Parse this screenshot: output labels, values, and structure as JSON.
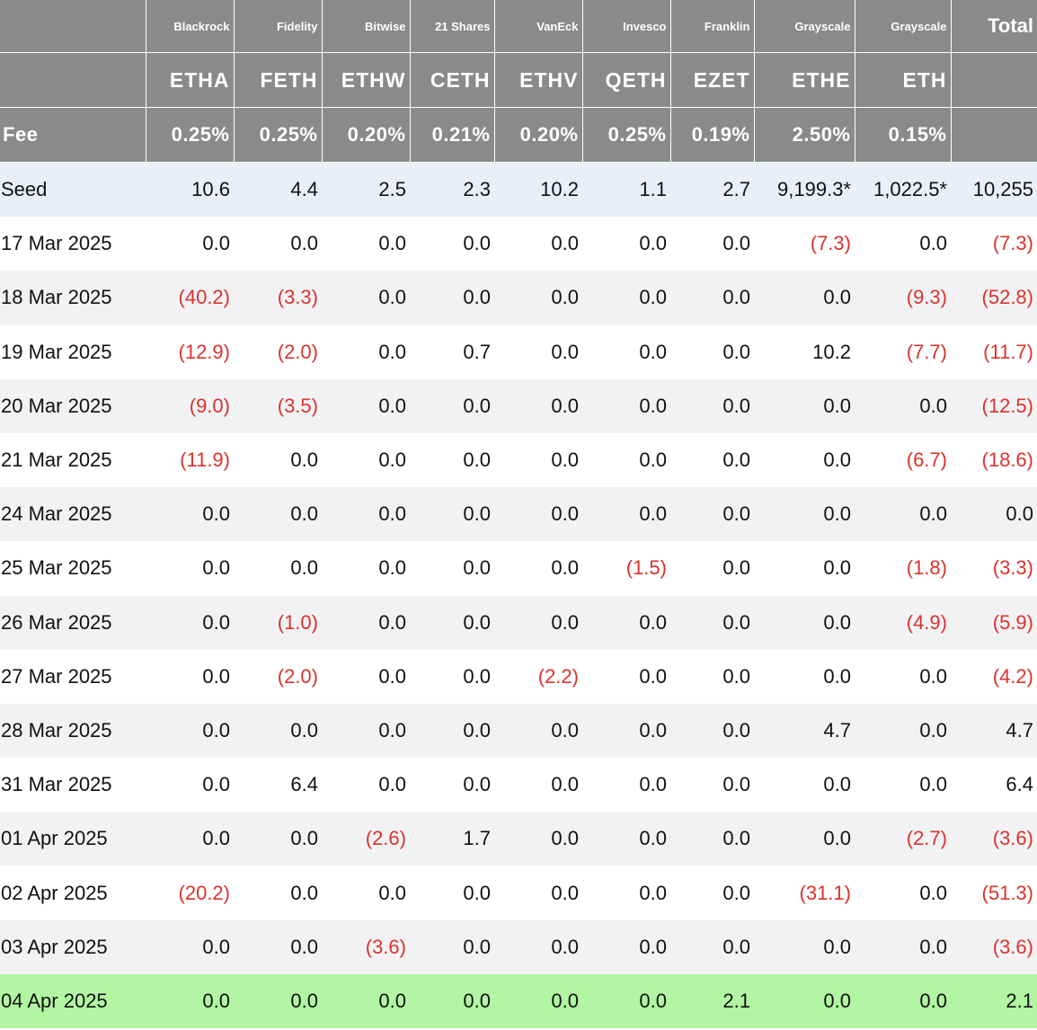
{
  "header": {
    "issuers": [
      "Blackrock",
      "Fidelity",
      "Bitwise",
      "21 Shares",
      "VanEck",
      "Invesco",
      "Franklin",
      "Grayscale",
      "Grayscale"
    ],
    "total_label": "Total",
    "tickers": [
      "ETHA",
      "FETH",
      "ETHW",
      "CETH",
      "ETHV",
      "QETH",
      "EZET",
      "ETHE",
      "ETH"
    ],
    "fee_label": "Fee",
    "fees": [
      "0.25%",
      "0.25%",
      "0.20%",
      "0.21%",
      "0.20%",
      "0.25%",
      "0.19%",
      "2.50%",
      "0.15%"
    ]
  },
  "rows": [
    {
      "label": "Seed",
      "values": [
        "10.6",
        "4.4",
        "2.5",
        "2.3",
        "10.2",
        "1.1",
        "2.7",
        "9,199.3*",
        "1,022.5*"
      ],
      "total": "10,255"
    },
    {
      "label": "17 Mar 2025",
      "values": [
        "0.0",
        "0.0",
        "0.0",
        "0.0",
        "0.0",
        "0.0",
        "0.0",
        "(7.3)",
        "0.0"
      ],
      "total": "(7.3)"
    },
    {
      "label": "18 Mar 2025",
      "values": [
        "(40.2)",
        "(3.3)",
        "0.0",
        "0.0",
        "0.0",
        "0.0",
        "0.0",
        "0.0",
        "(9.3)"
      ],
      "total": "(52.8)"
    },
    {
      "label": "19 Mar 2025",
      "values": [
        "(12.9)",
        "(2.0)",
        "0.0",
        "0.7",
        "0.0",
        "0.0",
        "0.0",
        "10.2",
        "(7.7)"
      ],
      "total": "(11.7)"
    },
    {
      "label": "20 Mar 2025",
      "values": [
        "(9.0)",
        "(3.5)",
        "0.0",
        "0.0",
        "0.0",
        "0.0",
        "0.0",
        "0.0",
        "0.0"
      ],
      "total": "(12.5)"
    },
    {
      "label": "21 Mar 2025",
      "values": [
        "(11.9)",
        "0.0",
        "0.0",
        "0.0",
        "0.0",
        "0.0",
        "0.0",
        "0.0",
        "(6.7)"
      ],
      "total": "(18.6)"
    },
    {
      "label": "24 Mar 2025",
      "values": [
        "0.0",
        "0.0",
        "0.0",
        "0.0",
        "0.0",
        "0.0",
        "0.0",
        "0.0",
        "0.0"
      ],
      "total": "0.0"
    },
    {
      "label": "25 Mar 2025",
      "values": [
        "0.0",
        "0.0",
        "0.0",
        "0.0",
        "0.0",
        "(1.5)",
        "0.0",
        "0.0",
        "(1.8)"
      ],
      "total": "(3.3)"
    },
    {
      "label": "26 Mar 2025",
      "values": [
        "0.0",
        "(1.0)",
        "0.0",
        "0.0",
        "0.0",
        "0.0",
        "0.0",
        "0.0",
        "(4.9)"
      ],
      "total": "(5.9)"
    },
    {
      "label": "27 Mar 2025",
      "values": [
        "0.0",
        "(2.0)",
        "0.0",
        "0.0",
        "(2.2)",
        "0.0",
        "0.0",
        "0.0",
        "0.0"
      ],
      "total": "(4.2)"
    },
    {
      "label": "28 Mar 2025",
      "values": [
        "0.0",
        "0.0",
        "0.0",
        "0.0",
        "0.0",
        "0.0",
        "0.0",
        "4.7",
        "0.0"
      ],
      "total": "4.7"
    },
    {
      "label": "31 Mar 2025",
      "values": [
        "0.0",
        "6.4",
        "0.0",
        "0.0",
        "0.0",
        "0.0",
        "0.0",
        "0.0",
        "0.0"
      ],
      "total": "6.4"
    },
    {
      "label": "01 Apr 2025",
      "values": [
        "0.0",
        "0.0",
        "(2.6)",
        "1.7",
        "0.0",
        "0.0",
        "0.0",
        "0.0",
        "(2.7)"
      ],
      "total": "(3.6)"
    },
    {
      "label": "02 Apr 2025",
      "values": [
        "(20.2)",
        "0.0",
        "0.0",
        "0.0",
        "0.0",
        "0.0",
        "0.0",
        "(31.1)",
        "0.0"
      ],
      "total": "(51.3)"
    },
    {
      "label": "03 Apr 2025",
      "values": [
        "0.0",
        "0.0",
        "(3.6)",
        "0.0",
        "0.0",
        "0.0",
        "0.0",
        "0.0",
        "0.0"
      ],
      "total": "(3.6)"
    },
    {
      "label": "04 Apr 2025",
      "values": [
        "0.0",
        "0.0",
        "0.0",
        "0.0",
        "0.0",
        "0.0",
        "2.1",
        "0.0",
        "0.0"
      ],
      "total": "2.1"
    }
  ],
  "colors": {
    "header_bg": "#8a8a8a",
    "header_text": "#ffffff",
    "negative_text": "#d9322c",
    "seed_row_bg": "#e9eef8",
    "stripe_bg": "#f2f2f4",
    "latest_row_bg": "#b2f5a2"
  }
}
